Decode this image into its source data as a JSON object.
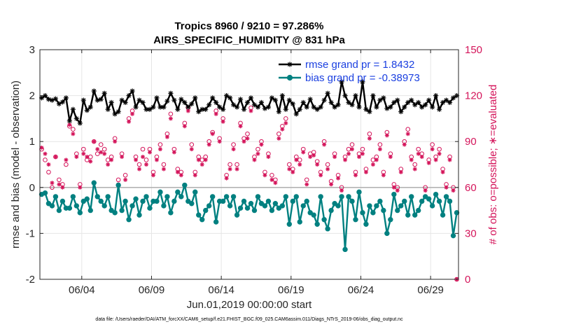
{
  "chart_data": {
    "type": "line",
    "title_line1": "Tropics 8960 / 9210 = 97.286%",
    "title_line2": "AIRS_SPECIFIC_HUMIDITY @ 831 hPa",
    "xlabel": "Jun.01,2019 00:00:00 start",
    "ylabel": "rmse and bias (model - observation)",
    "ylabel_right": "# of obs: o=possible; ∗=evaluated",
    "footer": "data file: /Users/raeder/DAI/ATM_forcXX/CAM6_setup/f.e21.FHIST_BGC.f09_025.CAM6assim.011/Diags_NTrS_2019-06/obs_diag_output.nc",
    "xlim": [
      1.0,
      31.0
    ],
    "ylim": [
      -2,
      3
    ],
    "ylim_right": [
      0,
      150
    ],
    "x_ticks": [
      4,
      9,
      14,
      19,
      24,
      29
    ],
    "x_tick_labels": [
      "06/04",
      "06/09",
      "06/14",
      "06/19",
      "06/24",
      "06/29"
    ],
    "y_ticks": [
      -2,
      -1,
      0,
      1,
      2,
      3
    ],
    "y_tick_labels": [
      "-2",
      "-1",
      "0",
      "1",
      "2",
      "3"
    ],
    "y_ticks_right": [
      0,
      30,
      60,
      90,
      120,
      150
    ],
    "y_tick_labels_right": [
      "0",
      "30",
      "60",
      "90",
      "120",
      "150"
    ],
    "grid": true,
    "legend_position": "top-right",
    "colors": {
      "rmse": "#000000",
      "bias": "#008080",
      "obs": "#d4145a",
      "zero_line": "#b3b3b3",
      "legend_text": "#1a3fe0"
    },
    "x": [
      1.125,
      1.375,
      1.625,
      1.875,
      2.125,
      2.375,
      2.625,
      2.875,
      3.125,
      3.375,
      3.625,
      3.875,
      4.125,
      4.375,
      4.625,
      4.875,
      5.125,
      5.375,
      5.625,
      5.875,
      6.125,
      6.375,
      6.625,
      6.875,
      7.125,
      7.375,
      7.625,
      7.875,
      8.125,
      8.375,
      8.625,
      8.875,
      9.125,
      9.375,
      9.625,
      9.875,
      10.125,
      10.375,
      10.625,
      10.875,
      11.125,
      11.375,
      11.625,
      11.875,
      12.125,
      12.375,
      12.625,
      12.875,
      13.125,
      13.375,
      13.625,
      13.875,
      14.125,
      14.375,
      14.625,
      14.875,
      15.125,
      15.375,
      15.625,
      15.875,
      16.125,
      16.375,
      16.625,
      16.875,
      17.125,
      17.375,
      17.625,
      17.875,
      18.125,
      18.375,
      18.625,
      18.875,
      19.125,
      19.375,
      19.625,
      19.875,
      20.125,
      20.375,
      20.625,
      20.875,
      21.125,
      21.375,
      21.625,
      21.875,
      22.125,
      22.375,
      22.625,
      22.875,
      23.125,
      23.375,
      23.625,
      23.875,
      24.125,
      24.375,
      24.625,
      24.875,
      25.125,
      25.375,
      25.625,
      25.875,
      26.125,
      26.375,
      26.625,
      26.875,
      27.125,
      27.375,
      27.625,
      27.875,
      28.125,
      28.375,
      28.625,
      28.875,
      29.125,
      29.375,
      29.625,
      29.875,
      30.125,
      30.375,
      30.625,
      30.875
    ],
    "series": [
      {
        "name": "rmse",
        "legend_label": "rmse grand pr = 1.8432",
        "axis": "left",
        "marker": "star",
        "values": [
          1.95,
          2.0,
          1.92,
          1.9,
          1.93,
          1.82,
          1.86,
          1.95,
          1.45,
          1.7,
          1.5,
          1.4,
          1.9,
          1.68,
          1.75,
          2.1,
          1.9,
          1.92,
          2.05,
          1.7,
          1.85,
          1.6,
          1.65,
          1.9,
          1.85,
          2.0,
          2.1,
          1.75,
          1.9,
          1.85,
          1.7,
          1.7,
          1.75,
          1.95,
          1.75,
          1.75,
          1.88,
          2.05,
          1.9,
          1.7,
          1.92,
          1.85,
          1.75,
          1.82,
          1.95,
          1.65,
          1.7,
          1.7,
          1.8,
          1.95,
          1.85,
          1.75,
          1.7,
          2.0,
          1.95,
          1.8,
          1.75,
          1.92,
          1.7,
          1.85,
          1.95,
          1.8,
          1.75,
          1.85,
          1.72,
          1.75,
          1.95,
          1.9,
          1.65,
          2.0,
          1.7,
          1.9,
          1.82,
          1.6,
          1.7,
          1.85,
          1.75,
          1.92,
          1.75,
          1.7,
          1.75,
          1.9,
          2.05,
          1.85,
          1.75,
          1.8,
          2.3,
          2.0,
          1.85,
          1.8,
          2.0,
          1.75,
          2.3,
          1.7,
          1.65,
          2.0,
          1.75,
          1.9,
          1.95,
          1.72,
          1.75,
          1.85,
          1.9,
          1.65,
          1.75,
          1.85,
          1.9,
          1.8,
          1.85,
          1.75,
          1.8,
          1.9,
          1.75,
          2.0,
          1.7,
          1.85,
          1.9,
          1.85,
          1.95,
          2.0
        ]
      },
      {
        "name": "bias",
        "legend_label": "bias grand pr = -0.38973",
        "axis": "left",
        "marker": "circle",
        "values": [
          -0.15,
          -0.12,
          -0.35,
          -0.4,
          -0.2,
          -0.5,
          -0.3,
          -0.45,
          -0.45,
          -0.2,
          -0.4,
          -0.55,
          -0.3,
          -0.25,
          -0.5,
          0.1,
          -0.2,
          -0.3,
          -0.4,
          -0.2,
          -0.5,
          -0.55,
          0.05,
          -0.5,
          -0.3,
          -0.7,
          -0.4,
          -0.25,
          -0.6,
          -0.3,
          -0.2,
          -0.45,
          -0.3,
          -0.3,
          -0.1,
          -0.4,
          -0.2,
          -0.55,
          -0.3,
          -0.1,
          -0.2,
          0.05,
          -0.3,
          -0.35,
          -0.1,
          -0.6,
          -0.7,
          -0.5,
          -0.4,
          -0.2,
          -0.75,
          -0.3,
          -0.3,
          -0.2,
          -0.4,
          -0.2,
          -0.6,
          -0.45,
          -0.3,
          -0.45,
          -0.35,
          -0.5,
          -0.2,
          -0.35,
          -0.4,
          -0.3,
          -0.5,
          -0.35,
          -0.45,
          -0.4,
          -0.2,
          -0.8,
          -0.3,
          -0.2,
          -0.75,
          -0.4,
          -0.3,
          -0.55,
          -0.6,
          -0.8,
          -0.2,
          -0.7,
          -0.9,
          -0.5,
          -0.35,
          -0.4,
          -0.2,
          -1.35,
          -0.2,
          -0.3,
          -0.7,
          -0.1,
          -0.55,
          -0.8,
          -0.4,
          -0.55,
          -0.4,
          -0.3,
          -0.5,
          -1.0,
          -0.7,
          -0.15,
          -0.5,
          -0.4,
          -0.3,
          -0.6,
          -0.2,
          -0.6,
          -0.5,
          -0.3,
          -0.2,
          -0.25,
          -0.4,
          -0.15,
          -0.3,
          -0.6,
          -0.2,
          -0.3,
          -1.05,
          -0.55
        ]
      }
    ],
    "obs": [
      {
        "name": "possible",
        "marker": "o",
        "values": [
          85,
          78,
          70,
          60,
          80,
          65,
          62,
          75,
          100,
          98,
          82,
          62,
          85,
          78,
          80,
          90,
          82,
          88,
          85,
          78,
          80,
          92,
          65,
          82,
          68,
          105,
          110,
          80,
          75,
          85,
          78,
          85,
          70,
          80,
          88,
          75,
          95,
          108,
          85,
          72,
          70,
          102,
          112,
          88,
          70,
          80,
          78,
          80,
          90,
          96,
          110,
          92,
          105,
          68,
          75,
          88,
          75,
          102,
          92,
          95,
          112,
          80,
          85,
          90,
          70,
          82,
          68,
          65,
          95,
          100,
          105,
          75,
          72,
          80,
          78,
          85,
          65,
          82,
          83,
          77,
          70,
          90,
          75,
          64,
          82,
          68,
          60,
          80,
          85,
          88,
          70,
          82,
          85,
          72,
          95,
          78,
          80,
          88,
          70,
          96,
          82,
          62,
          60,
          72,
          90,
          98,
          80,
          75,
          85,
          82,
          60,
          78,
          88,
          80,
          85,
          72,
          62,
          80,
          60,
          0
        ]
      },
      {
        "name": "evaluated",
        "marker": "*",
        "values": [
          86,
          82,
          75,
          63,
          80,
          62,
          60,
          78,
          101,
          95,
          80,
          60,
          82,
          80,
          77,
          90,
          85,
          83,
          82,
          75,
          78,
          90,
          62,
          80,
          65,
          103,
          108,
          78,
          72,
          80,
          75,
          83,
          68,
          78,
          85,
          72,
          93,
          105,
          83,
          70,
          68,
          100,
          110,
          85,
          68,
          78,
          75,
          78,
          88,
          95,
          108,
          90,
          103,
          66,
          72,
          85,
          72,
          100,
          90,
          92,
          110,
          78,
          82,
          88,
          68,
          80,
          65,
          63,
          92,
          98,
          102,
          72,
          70,
          78,
          75,
          83,
          62,
          80,
          81,
          75,
          68,
          88,
          72,
          62,
          80,
          66,
          58,
          78,
          82,
          85,
          68,
          80,
          82,
          70,
          92,
          75,
          78,
          85,
          68,
          94,
          80,
          60,
          58,
          70,
          88,
          95,
          78,
          72,
          82,
          80,
          58,
          76,
          85,
          78,
          82,
          70,
          60,
          78,
          58,
          0
        ]
      }
    ]
  }
}
